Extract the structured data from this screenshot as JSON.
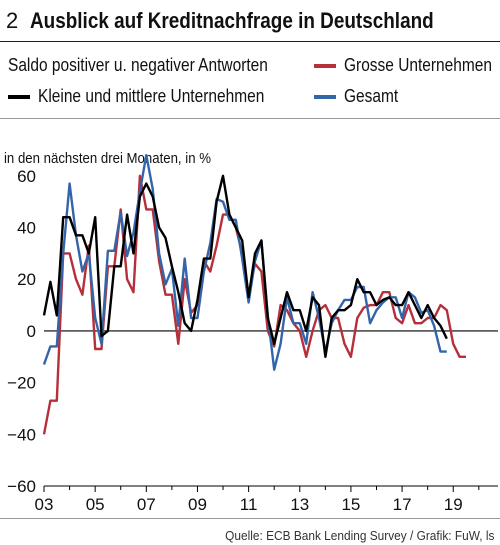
{
  "header": {
    "number": "2",
    "title": "Ausblick auf Kreditnachfrage in Deutschland"
  },
  "legend": {
    "heading": "Saldo positiver u. negativer Antworten",
    "items": [
      {
        "name": "Grosse Unternehmen",
        "color": "#b5303a"
      },
      {
        "name": "Kleine und mittlere Unternehmen",
        "color": "#000000"
      },
      {
        "name": "Gesamt",
        "color": "#3465a8"
      }
    ]
  },
  "subtitle": "in den nächsten drei Monaten, in %",
  "source": "Quelle: ECB Bank Lending Survey / Grafik: FuW, ls",
  "chart_data": {
    "type": "line",
    "title": "Ausblick auf Kreditnachfrage in Deutschland",
    "ylabel": "in den nächsten drei Monaten, in %",
    "xlabel": "",
    "xlim": [
      2003.0,
      2020.75
    ],
    "ylim": [
      -60,
      70
    ],
    "y_ticks": [
      60,
      40,
      20,
      0,
      -20,
      -40,
      -60
    ],
    "x_ticks": [
      {
        "value": 2003,
        "label": "03"
      },
      {
        "value": 2005,
        "label": "05"
      },
      {
        "value": 2007,
        "label": "07"
      },
      {
        "value": 2009,
        "label": "09"
      },
      {
        "value": 2011,
        "label": "11"
      },
      {
        "value": 2013,
        "label": "13"
      },
      {
        "value": 2015,
        "label": "15"
      },
      {
        "value": 2017,
        "label": "17"
      },
      {
        "value": 2019,
        "label": "19"
      }
    ],
    "grid": false,
    "zero_line": true,
    "legend_position": "top",
    "x_start": 2003.0,
    "x_step": 0.25,
    "series": [
      {
        "name": "Grosse Unternehmen",
        "color": "#b5303a",
        "values": [
          -40,
          -27,
          -27,
          30,
          30,
          20,
          14,
          33,
          -7,
          -7,
          25,
          25,
          47,
          20,
          15,
          60,
          47,
          47,
          27,
          14,
          14,
          -5,
          20,
          7,
          10,
          27,
          23,
          33,
          45,
          45,
          40,
          30,
          14,
          26,
          23,
          0,
          -6,
          10,
          8,
          3,
          0,
          -10,
          0,
          8,
          10,
          5,
          5,
          -5,
          -10,
          5,
          9,
          10,
          10,
          15,
          15,
          5,
          3,
          10,
          3,
          3,
          5,
          5,
          10,
          8,
          -5,
          -10,
          -10
        ]
      },
      {
        "name": "Kleine und mittlere Unternehmen",
        "color": "#000000",
        "values": [
          6,
          19,
          6,
          44,
          44,
          37,
          37,
          30,
          44,
          -2,
          0,
          25,
          25,
          45,
          30,
          52,
          57,
          52,
          40,
          36,
          25,
          15,
          3,
          0,
          12,
          28,
          28,
          50,
          60,
          45,
          40,
          35,
          13,
          30,
          35,
          5,
          -5,
          5,
          15,
          8,
          8,
          0,
          13,
          10,
          -10,
          5,
          8,
          8,
          10,
          20,
          15,
          15,
          10,
          12,
          13,
          10,
          10,
          15,
          10,
          5,
          10,
          5,
          2,
          -3
        ]
      },
      {
        "name": "Gesamt",
        "color": "#3465a8",
        "values": [
          -13,
          -6,
          -6,
          30,
          57,
          37,
          23,
          30,
          5,
          -5,
          31,
          31,
          46,
          29,
          38,
          54,
          68,
          55,
          30,
          18,
          24,
          2,
          28,
          5,
          5,
          23,
          34,
          51,
          50,
          43,
          43,
          28,
          11,
          27,
          35,
          6,
          -15,
          -5,
          13,
          3,
          3,
          -5,
          15,
          5,
          -8,
          3,
          8,
          12,
          12,
          17,
          17,
          3,
          8,
          11,
          13,
          13,
          5,
          15,
          13,
          7,
          8,
          2,
          -8,
          -8
        ]
      }
    ]
  }
}
